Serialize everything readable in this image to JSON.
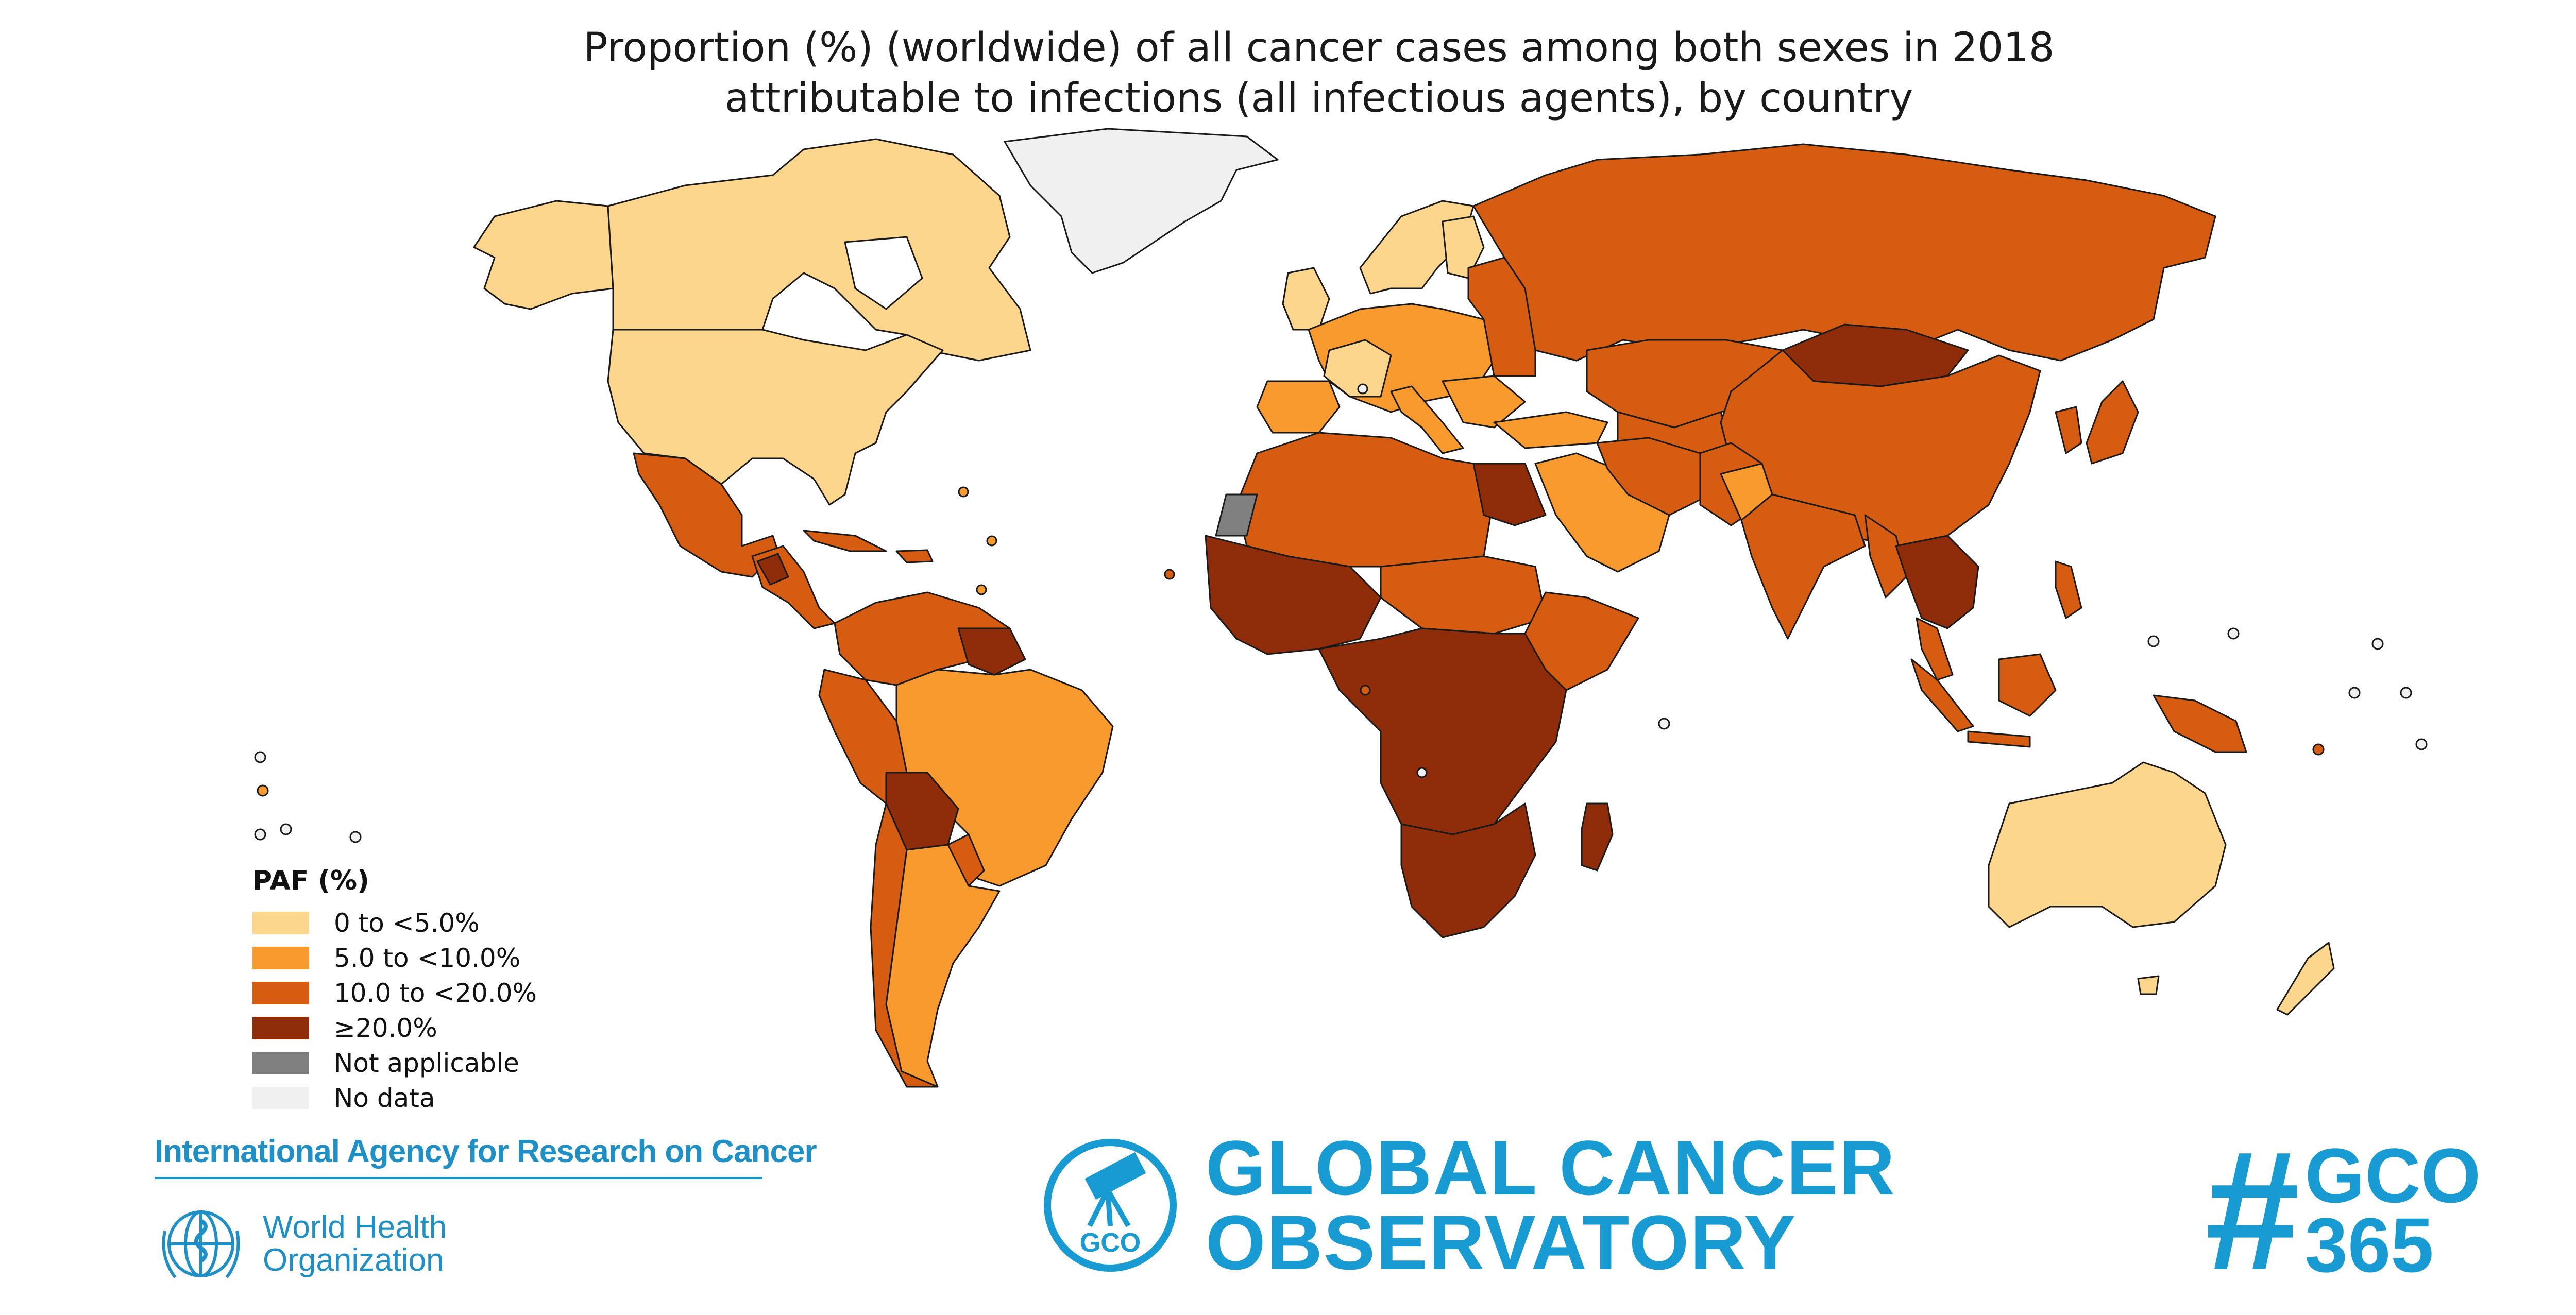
{
  "title": {
    "line1": "Proportion (%) (worldwide) of all cancer cases among both sexes in 2018",
    "line2": "attributable to infections (all infectious agents), by country"
  },
  "colors": {
    "cat_0_5": "#fdd68e",
    "cat_5_10": "#f89a2e",
    "cat_10_20": "#d65c11",
    "cat_20_plus": "#8f2d0a",
    "not_applicable": "#808080",
    "no_data": "#f0f0f0",
    "border": "#1a1a1a",
    "brand_blue": "#189ad3"
  },
  "legend": {
    "title": "PAF (%)",
    "items": [
      {
        "label": "0 to <5.0%",
        "color": "#fdd68e"
      },
      {
        "label": "5.0 to <10.0%",
        "color": "#f89a2e"
      },
      {
        "label": "10.0 to <20.0%",
        "color": "#d65c11"
      },
      {
        "label": "≥20.0%",
        "color": "#8f2d0a"
      },
      {
        "label": "Not applicable",
        "color": "#808080"
      },
      {
        "label": "No data",
        "color": "#f0f0f0"
      }
    ]
  },
  "footer": {
    "iarc": "International Agency for Research on Cancer",
    "who_line1": "World Health",
    "who_line2": "Organization",
    "gco_line1": "GLOBAL CANCER",
    "gco_line2": "OBSERVATORY",
    "gco_badge": "GCO",
    "tag_hash": "#",
    "tag_line1": "GCO",
    "tag_line2": "365"
  }
}
